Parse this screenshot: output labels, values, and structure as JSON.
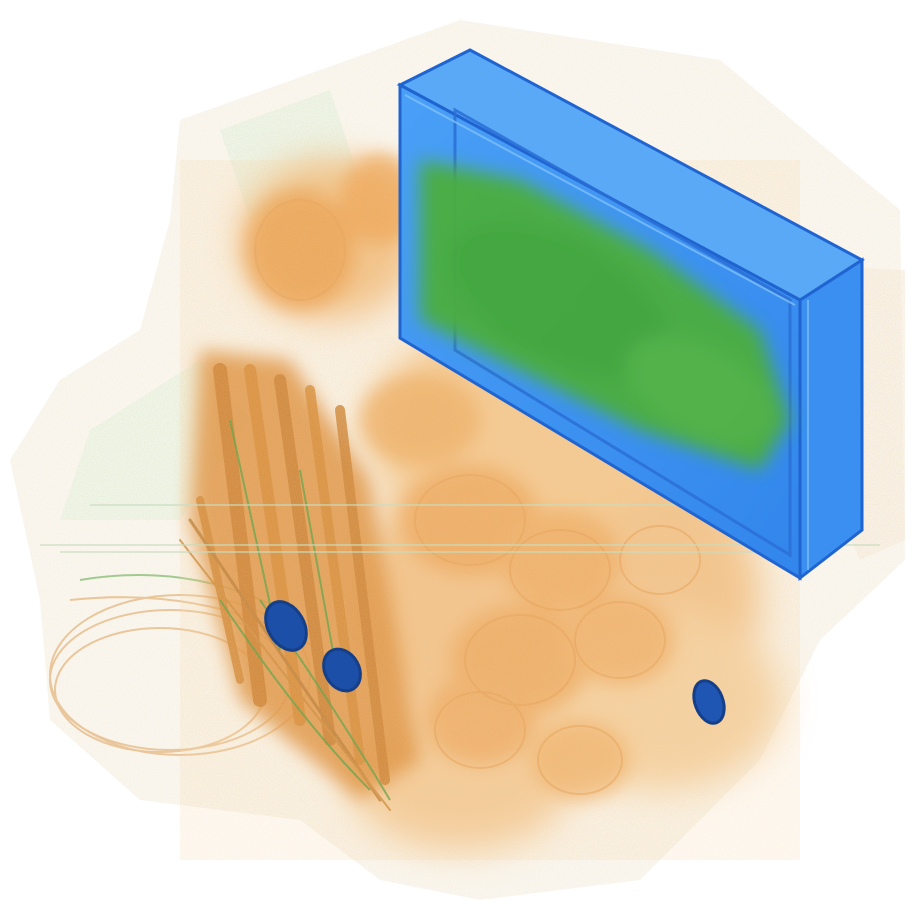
{
  "image": {
    "kind": "volume-rendered x-ray scan of a bag",
    "background_color": "#ffffff",
    "colors": {
      "organic_material": "#e8973a",
      "organic_light": "#f2c48c",
      "mixed_material": "#4fae3c",
      "mixed_light": "#cfe6c4",
      "dense_object": "#3d8ff0",
      "dense_edge": "#1f64d0",
      "dense_small_object": "#1c4fa8"
    },
    "objects": [
      {
        "name": "rectangular-case",
        "material": "dense_object"
      },
      {
        "name": "organic-clutter",
        "material": "organic_material"
      },
      {
        "name": "wire-bundle",
        "material": "mixed_material"
      },
      {
        "name": "small-dense-object-a",
        "material": "dense_small_object"
      },
      {
        "name": "small-dense-object-b",
        "material": "dense_small_object"
      },
      {
        "name": "small-dense-object-c",
        "material": "dense_small_object"
      }
    ]
  }
}
